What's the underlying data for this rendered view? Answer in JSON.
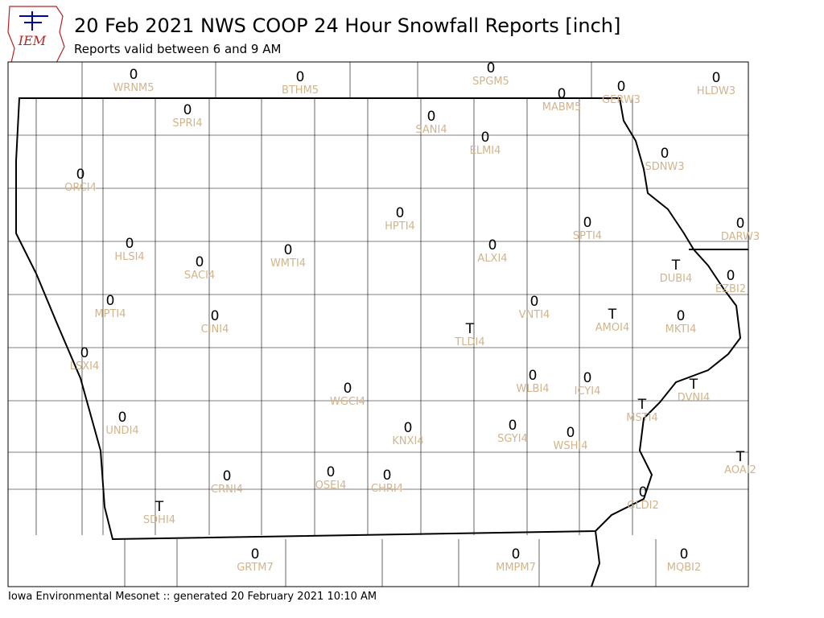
{
  "logo": "IEM",
  "header": {
    "title": "20 Feb 2021 NWS COOP 24 Hour Snowfall Reports [inch]",
    "subtitle": "Reports valid between 6 and 9 AM"
  },
  "footer": "Iowa Environmental Mesonet :: generated 20 February 2021 10:10 AM",
  "stations": [
    {
      "value": 0,
      "id": "WRNM5"
    },
    {
      "value": 0,
      "id": "BTHM5"
    },
    {
      "value": 0,
      "id": "SPGM5"
    },
    {
      "value": 0,
      "id": "MABM5"
    },
    {
      "value": 0,
      "id": "GERW3"
    },
    {
      "value": 0,
      "id": "HLDW3"
    },
    {
      "value": 0,
      "id": "SPRI4"
    },
    {
      "value": 0,
      "id": "SANI4"
    },
    {
      "value": 0,
      "id": "ELMI4"
    },
    {
      "value": 0,
      "id": "SDNW3"
    },
    {
      "value": 0,
      "id": "ORCI4"
    },
    {
      "value": 0,
      "id": "HPTI4"
    },
    {
      "value": 0,
      "id": "SPTI4"
    },
    {
      "value": 0,
      "id": "DARW3"
    },
    {
      "value": 0,
      "id": "HLSI4"
    },
    {
      "value": 0,
      "id": "ALXI4"
    },
    {
      "value": 0,
      "id": "WMTI4"
    },
    {
      "value": 0,
      "id": "SACI4"
    },
    {
      "value": "T",
      "id": "DUBI4"
    },
    {
      "value": 0,
      "id": "EZBI2"
    },
    {
      "value": 0,
      "id": "MPTI4"
    },
    {
      "value": 0,
      "id": "VNTI4"
    },
    {
      "value": "T",
      "id": "AMOI4"
    },
    {
      "value": 0,
      "id": "MKTI4"
    },
    {
      "value": 0,
      "id": "CINI4"
    },
    {
      "value": "T",
      "id": "TLDI4"
    },
    {
      "value": 0,
      "id": "LSXI4"
    },
    {
      "value": 0,
      "id": "WLBI4"
    },
    {
      "value": 0,
      "id": "ICYI4"
    },
    {
      "value": "T",
      "id": "DVNI4"
    },
    {
      "value": 0,
      "id": "WGCI4"
    },
    {
      "value": "T",
      "id": "MSTI4"
    },
    {
      "value": 0,
      "id": "UNDI4"
    },
    {
      "value": 0,
      "id": "KNXI4"
    },
    {
      "value": 0,
      "id": "SGYI4"
    },
    {
      "value": 0,
      "id": "WSHI4"
    },
    {
      "value": "T",
      "id": "AOAI2"
    },
    {
      "value": 0,
      "id": "CRNI4"
    },
    {
      "value": 0,
      "id": "OSEI4"
    },
    {
      "value": 0,
      "id": "CHRI4"
    },
    {
      "value": 0,
      "id": "GLDI2"
    },
    {
      "value": "T",
      "id": "SDHI4"
    },
    {
      "value": 0,
      "id": "GRTM7"
    },
    {
      "value": 0,
      "id": "MMPM7"
    },
    {
      "value": 0,
      "id": "MQBI2"
    }
  ]
}
